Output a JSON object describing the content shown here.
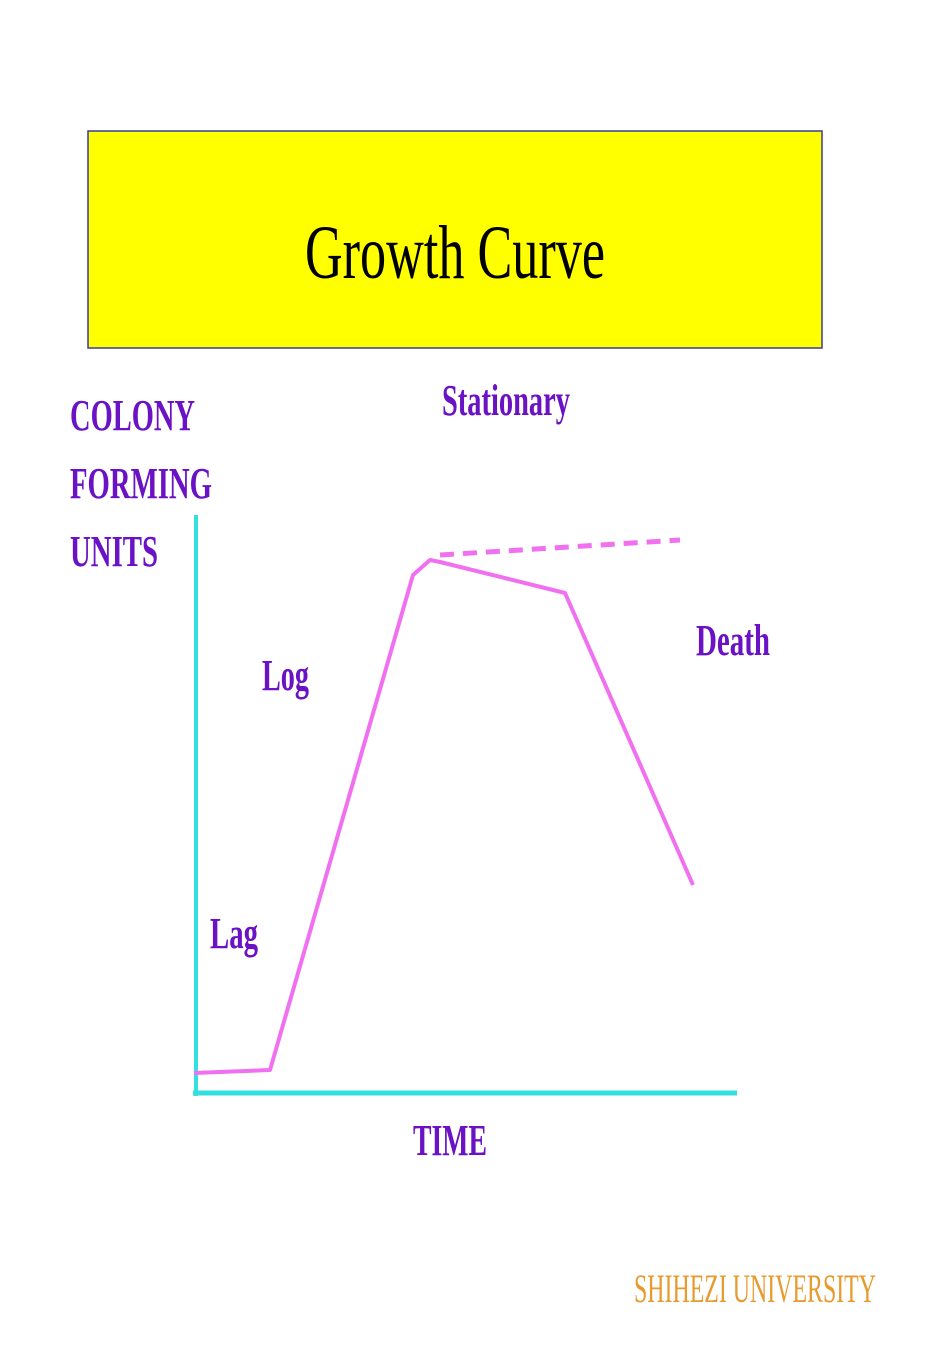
{
  "title": "Growth Curve",
  "y_axis_label": [
    "COLONY",
    "FORMING",
    "UNITS"
  ],
  "x_axis_label": "TIME",
  "phases": [
    "Stationary",
    "Log",
    "Lag",
    "Death"
  ],
  "footer": "SHIHEZI UNIVERSITY"
}
